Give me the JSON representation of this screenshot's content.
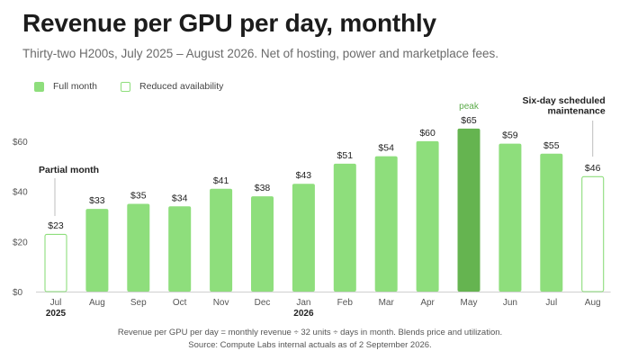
{
  "title": "Revenue per GPU per day, monthly",
  "subtitle": "Thirty-two H200s, July 2025 – August 2026. Net of hosting, power and marketplace fees.",
  "legend": {
    "full": "Full month",
    "reduced": "Reduced availability"
  },
  "colors": {
    "full": "#8ede7c",
    "peak": "#65b450",
    "peak_label": "#5cab4a",
    "axis": "#cfcfcf",
    "tick": "#555555"
  },
  "chart_data": {
    "type": "bar",
    "categories": [
      "Jul",
      "Aug",
      "Sep",
      "Oct",
      "Nov",
      "Dec",
      "Jan",
      "Feb",
      "Mar",
      "Apr",
      "May",
      "Jun",
      "Jul",
      "Aug"
    ],
    "year_labels": [
      "2025",
      "",
      "",
      "",
      "",
      "",
      "2026",
      "",
      "",
      "",
      "",
      "",
      "",
      ""
    ],
    "values": [
      23,
      33,
      35,
      34,
      41,
      38,
      43,
      51,
      54,
      60,
      65,
      59,
      55,
      46
    ],
    "value_labels": [
      "$23",
      "$33",
      "$35",
      "$34",
      "$41",
      "$38",
      "$43",
      "$51",
      "$54",
      "$60",
      "$65",
      "$59",
      "$55",
      "$46"
    ],
    "styles": [
      "reduced",
      "full",
      "full",
      "full",
      "full",
      "full",
      "full",
      "full",
      "full",
      "full",
      "peak",
      "full",
      "full",
      "reduced"
    ],
    "ylim": [
      0,
      70
    ],
    "yticks": [
      0,
      20,
      40,
      60
    ],
    "ytick_labels": [
      "$0",
      "$20",
      "$40",
      "$60"
    ],
    "grid": false,
    "annotations": [
      {
        "index": 0,
        "lines": [
          "Partial month"
        ]
      },
      {
        "index": 10,
        "lines": [
          "peak"
        ]
      },
      {
        "index": 13,
        "lines": [
          "Six-day scheduled",
          "maintenance"
        ]
      }
    ]
  },
  "footnote": {
    "line1": "Revenue per GPU per day = monthly revenue ÷ 32 units ÷ days in month. Blends price and utilization.",
    "line2": "Source: Compute Labs internal actuals as of 2 September 2026."
  }
}
